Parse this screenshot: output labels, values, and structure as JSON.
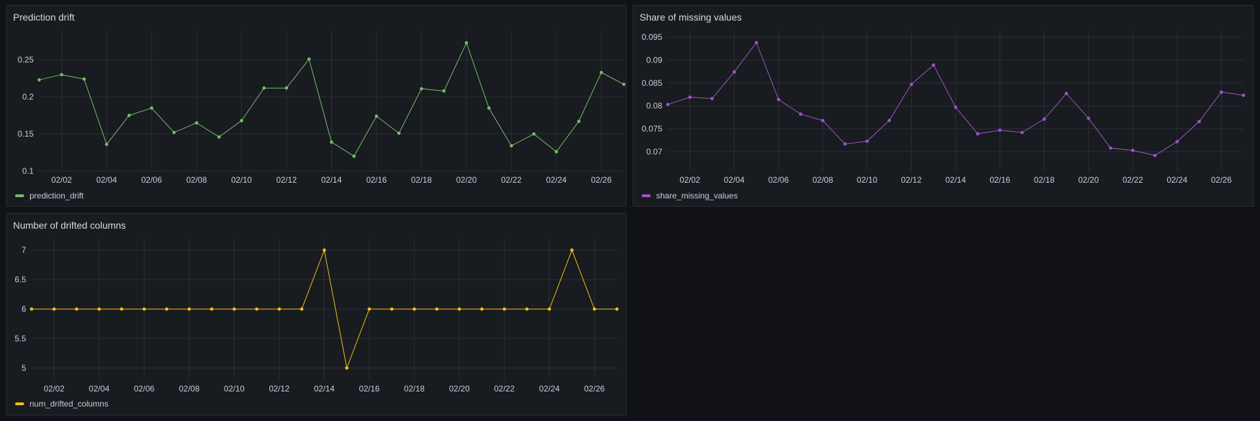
{
  "panels": [
    {
      "id": "prediction_drift",
      "title": "Prediction drift",
      "legend": "prediction_drift",
      "color": "#73bf69",
      "chart_data": {
        "type": "line",
        "x": [
          "02/01",
          "02/02",
          "02/03",
          "02/04",
          "02/05",
          "02/06",
          "02/07",
          "02/08",
          "02/09",
          "02/10",
          "02/11",
          "02/12",
          "02/13",
          "02/14",
          "02/15",
          "02/16",
          "02/17",
          "02/18",
          "02/19",
          "02/20",
          "02/21",
          "02/22",
          "02/23",
          "02/24",
          "02/25",
          "02/26",
          "02/27"
        ],
        "series": [
          {
            "name": "prediction_drift",
            "values": [
              0.223,
              0.23,
              0.224,
              0.136,
              0.175,
              0.185,
              0.152,
              0.165,
              0.146,
              0.168,
              0.212,
              0.212,
              0.251,
              0.139,
              0.12,
              0.174,
              0.151,
              0.211,
              0.208,
              0.273,
              0.185,
              0.134,
              0.15,
              0.126,
              0.167,
              0.233,
              0.217
            ]
          }
        ],
        "xticks": [
          "02/02",
          "02/04",
          "02/06",
          "02/08",
          "02/10",
          "02/12",
          "02/14",
          "02/16",
          "02/18",
          "02/20",
          "02/22",
          "02/24",
          "02/26"
        ],
        "yticks": [
          "0.1",
          "0.15",
          "0.2",
          "0.25"
        ],
        "ylim": [
          0.1,
          0.29
        ]
      }
    },
    {
      "id": "share_missing_values",
      "title": "Share of missing values",
      "legend": "share_missing_values",
      "color": "#a352cc",
      "chart_data": {
        "type": "line",
        "x": [
          "02/01",
          "02/02",
          "02/03",
          "02/04",
          "02/05",
          "02/06",
          "02/07",
          "02/08",
          "02/09",
          "02/10",
          "02/11",
          "02/12",
          "02/13",
          "02/14",
          "02/15",
          "02/16",
          "02/17",
          "02/18",
          "02/19",
          "02/20",
          "02/21",
          "02/22",
          "02/23",
          "02/24",
          "02/25",
          "02/26",
          "02/27"
        ],
        "series": [
          {
            "name": "share_missing_values",
            "values": [
              0.0803,
              0.0819,
              0.0816,
              0.0874,
              0.0938,
              0.0814,
              0.0782,
              0.0768,
              0.0717,
              0.0723,
              0.0768,
              0.0847,
              0.0889,
              0.0797,
              0.0739,
              0.0747,
              0.0742,
              0.0771,
              0.0827,
              0.0773,
              0.0708,
              0.0703,
              0.0692,
              0.0722,
              0.0766,
              0.083,
              0.0823
            ]
          }
        ],
        "xticks": [
          "02/02",
          "02/04",
          "02/06",
          "02/08",
          "02/10",
          "02/12",
          "02/14",
          "02/16",
          "02/18",
          "02/20",
          "02/22",
          "02/24",
          "02/26"
        ],
        "yticks": [
          "0.07",
          "0.075",
          "0.08",
          "0.085",
          "0.09",
          "0.095"
        ],
        "ylim": [
          0.0658,
          0.0965
        ]
      }
    },
    {
      "id": "num_drifted_columns",
      "title": "Number of drifted columns",
      "legend": "num_drifted_columns",
      "color": "#f2c018",
      "chart_data": {
        "type": "line",
        "x": [
          "02/01",
          "02/02",
          "02/03",
          "02/04",
          "02/05",
          "02/06",
          "02/07",
          "02/08",
          "02/09",
          "02/10",
          "02/11",
          "02/12",
          "02/13",
          "02/14",
          "02/15",
          "02/16",
          "02/17",
          "02/18",
          "02/19",
          "02/20",
          "02/21",
          "02/22",
          "02/23",
          "02/24",
          "02/25",
          "02/26",
          "02/27"
        ],
        "series": [
          {
            "name": "num_drifted_columns",
            "values": [
              6,
              6,
              6,
              6,
              6,
              6,
              6,
              6,
              6,
              6,
              6,
              6,
              6,
              7,
              5,
              6,
              6,
              6,
              6,
              6,
              6,
              6,
              6,
              6,
              7,
              6,
              6
            ]
          }
        ],
        "xticks": [
          "02/02",
          "02/04",
          "02/06",
          "02/08",
          "02/10",
          "02/12",
          "02/14",
          "02/16",
          "02/18",
          "02/20",
          "02/22",
          "02/24",
          "02/26"
        ],
        "yticks": [
          "5",
          "5.5",
          "6",
          "6.5",
          "7"
        ],
        "ylim": [
          4.8,
          7.2
        ]
      }
    }
  ]
}
